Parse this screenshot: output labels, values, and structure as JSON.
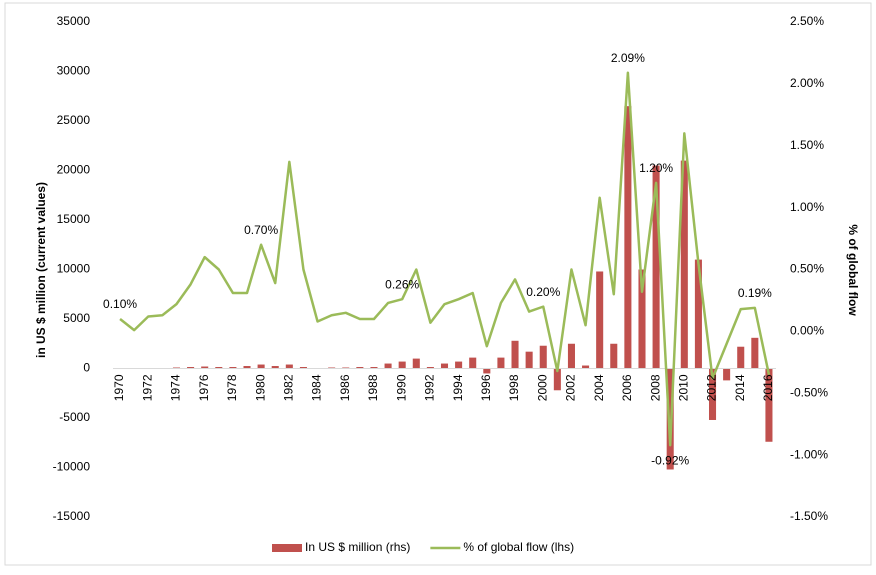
{
  "chart_data": {
    "type": "bar-line",
    "y_label": "in US $ million (current values)",
    "y2_label": "% of global flow",
    "categories": [
      "1970",
      null,
      "1972",
      null,
      "1974",
      null,
      "1976",
      null,
      "1978",
      null,
      "1980",
      null,
      "1982",
      null,
      "1984",
      null,
      "1986",
      null,
      "1988",
      null,
      "1990",
      null,
      "1992",
      null,
      "1994",
      null,
      "1996",
      null,
      "1998",
      null,
      "2000",
      null,
      "2002",
      null,
      "2004",
      null,
      "2006",
      null,
      "2008",
      null,
      "2010",
      null,
      "2012",
      null,
      "2014",
      null,
      "2016"
    ],
    "series": [
      {
        "name": "In US $ million (rhs)",
        "type": "bar",
        "color": "#c0504d",
        "axis": "y",
        "values": [
          20,
          10,
          30,
          50,
          100,
          150,
          200,
          150,
          150,
          250,
          400,
          250,
          400,
          150,
          50,
          100,
          100,
          150,
          150,
          500,
          700,
          1000,
          150,
          500,
          700,
          1100,
          -500,
          1100,
          2800,
          1700,
          2300,
          -2200,
          2500,
          300,
          9800,
          2500,
          26500,
          10000,
          20500,
          -10200,
          21000,
          11000,
          -5200,
          -1200,
          2200,
          3100,
          -7400
        ]
      },
      {
        "name": "% of global flow (lhs)",
        "type": "line",
        "color": "#9bbb59",
        "axis": "y2",
        "values": [
          0.1,
          0.01,
          0.12,
          0.13,
          0.22,
          0.38,
          0.6,
          0.5,
          0.31,
          0.31,
          0.7,
          0.39,
          1.37,
          0.5,
          0.08,
          0.13,
          0.15,
          0.1,
          0.1,
          0.23,
          0.26,
          0.5,
          0.07,
          0.22,
          0.26,
          0.31,
          -0.12,
          0.23,
          0.42,
          0.16,
          0.2,
          -0.32,
          0.5,
          0.05,
          1.08,
          0.3,
          2.09,
          0.32,
          1.2,
          -0.92,
          1.6,
          0.55,
          -0.38,
          -0.1,
          0.18,
          0.19,
          -0.35
        ],
        "value_labels": [
          "0.10%",
          null,
          null,
          null,
          null,
          null,
          null,
          null,
          null,
          null,
          "0.70%",
          null,
          null,
          null,
          null,
          null,
          null,
          null,
          null,
          null,
          "0.26%",
          null,
          null,
          null,
          null,
          null,
          null,
          null,
          null,
          null,
          "0.20%",
          null,
          null,
          null,
          null,
          null,
          "2.09%",
          null,
          "1.20%",
          "-0.92%",
          null,
          null,
          null,
          null,
          null,
          "0.19%",
          null
        ]
      }
    ],
    "ylim": [
      -15000,
      35000
    ],
    "yticks": [
      -15000,
      -10000,
      -5000,
      0,
      5000,
      10000,
      15000,
      20000,
      25000,
      30000,
      35000
    ],
    "y2lim": [
      -1.5,
      2.5
    ],
    "y2ticks": [
      {
        "value": -1.5,
        "label": "-1.50%"
      },
      {
        "value": -1.0,
        "label": "-1.00%"
      },
      {
        "value": -0.5,
        "label": "-0.50%"
      },
      {
        "value": 0,
        "label": "0.00%"
      },
      {
        "value": 0.5,
        "label": "0.50%"
      },
      {
        "value": 1.0,
        "label": "1.00%"
      },
      {
        "value": 1.5,
        "label": "1.50%"
      },
      {
        "value": 2.0,
        "label": "2.00%"
      },
      {
        "value": 2.5,
        "label": "2.50%"
      }
    ],
    "grid": false,
    "legend": "bottom"
  }
}
